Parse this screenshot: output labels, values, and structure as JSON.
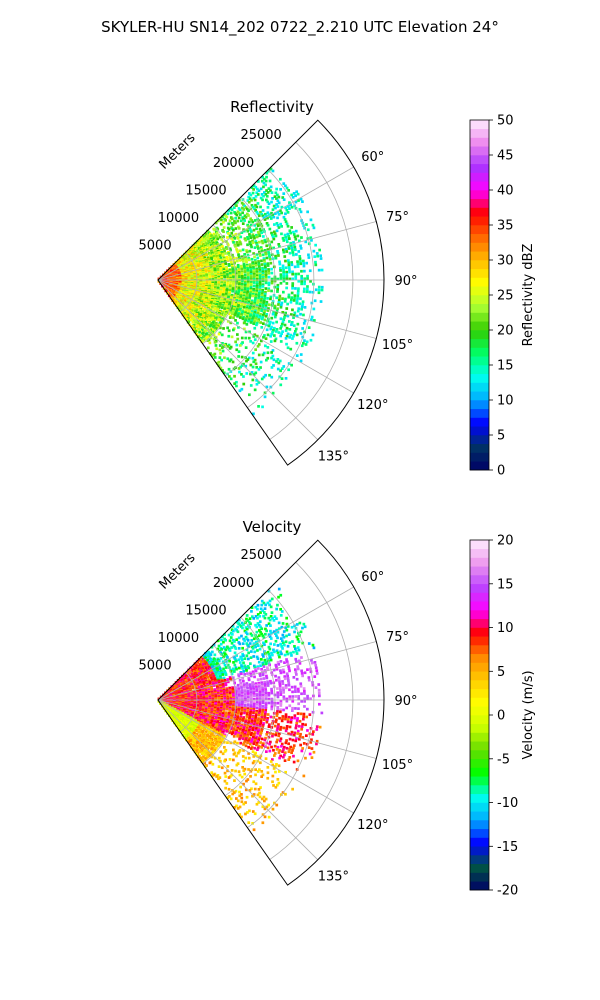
{
  "suptitle": "SKYLER-HU  SN14_202  0722_2.210 UTC Elevation 24°",
  "range_unit_label": "Meters",
  "colors": {
    "reflectivity_stops": [
      "#000066",
      "#003366",
      "#0000ff",
      "#00aaff",
      "#00ffee",
      "#00ff66",
      "#33cc00",
      "#aaff33",
      "#ffff00",
      "#ffbb00",
      "#ff6600",
      "#ff0000",
      "#ff00ff",
      "#aa33ff",
      "#ee88ee",
      "#ffeeff"
    ],
    "velocity_stops": [
      "#000066",
      "#005544",
      "#0000ff",
      "#00aaff",
      "#00ffee",
      "#00ff00",
      "#66dd00",
      "#ccff00",
      "#ffff00",
      "#ffcc00",
      "#ff8800",
      "#ff0000",
      "#ff00ff",
      "#bb44ff",
      "#ee99ee",
      "#ffeeff"
    ]
  },
  "chart_data": [
    {
      "type": "heatmap",
      "projection": "polar-sector",
      "title": "Reflectivity",
      "azimuth_range_deg": [
        45,
        145
      ],
      "azimuth_ticks": [
        "60°",
        "75°",
        "90°",
        "105°",
        "120°",
        "135°"
      ],
      "range_ticks": [
        "5000",
        "10000",
        "15000",
        "20000",
        "25000"
      ],
      "range_max_m": 29000,
      "colorbar": {
        "label": "Reflectivity dBZ",
        "min": 0,
        "max": 50,
        "ticks": [
          "0",
          "5",
          "10",
          "15",
          "20",
          "25",
          "30",
          "35",
          "40",
          "45",
          "50"
        ]
      },
      "data_extent_m": 21000,
      "grid": true
    },
    {
      "type": "heatmap",
      "projection": "polar-sector",
      "title": "Velocity",
      "azimuth_range_deg": [
        45,
        145
      ],
      "azimuth_ticks": [
        "60°",
        "75°",
        "90°",
        "105°",
        "120°",
        "135°"
      ],
      "range_ticks": [
        "5000",
        "10000",
        "15000",
        "20000",
        "25000"
      ],
      "range_max_m": 29000,
      "colorbar": {
        "label": "Velocity (m/s)",
        "min": -20,
        "max": 20,
        "ticks": [
          "-20",
          "-15",
          "-10",
          "-5",
          "0",
          "5",
          "10",
          "15",
          "20"
        ]
      },
      "data_extent_m": 21000,
      "grid": true
    }
  ]
}
